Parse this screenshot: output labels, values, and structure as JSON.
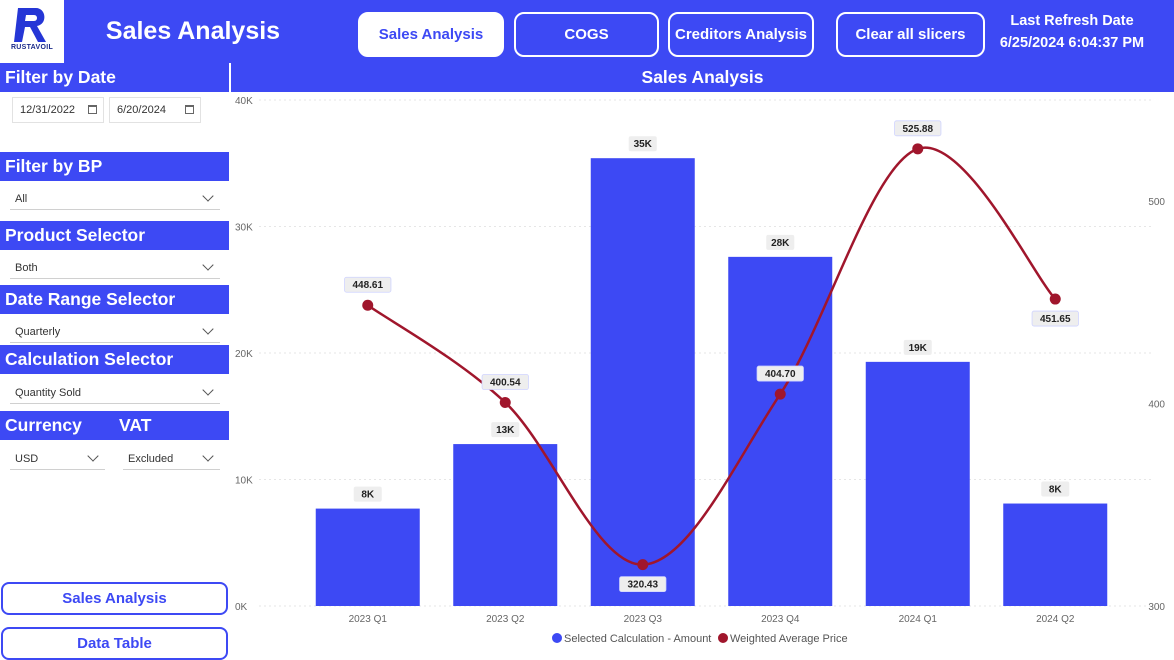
{
  "header": {
    "logo_text": "RUSTAVOIL",
    "title": "Sales Analysis",
    "nav": [
      {
        "label": "Sales Analysis",
        "active": true
      },
      {
        "label": "COGS",
        "active": false
      },
      {
        "label": "Creditors Analysis",
        "active": false
      },
      {
        "label": "Clear all slicers",
        "active": false
      }
    ],
    "refresh_label": "Last Refresh Date",
    "refresh_value": "6/25/2024 6:04:37 PM"
  },
  "sidebar": {
    "filter_date_title": "Filter by Date",
    "date_start": "12/31/2022",
    "date_end": "6/20/2024",
    "filter_bp_title": "Filter by BP",
    "filter_bp_value": "All",
    "product_title": "Product Selector",
    "product_value": "Both",
    "date_range_title": "Date Range Selector",
    "date_range_value": "Quarterly",
    "calc_title": "Calculation Selector",
    "calc_value": "Quantity Sold",
    "currency_title": "Currency",
    "currency_value": "USD",
    "vat_title": "VAT",
    "vat_value": "Excluded",
    "btn_sales": "Sales Analysis",
    "btn_table": "Data Table"
  },
  "chart_title": "Sales Analysis",
  "chart_data": {
    "type": "bar",
    "title": "Sales Analysis",
    "categories": [
      "2023 Q1",
      "2023 Q2",
      "2023 Q3",
      "2023 Q4",
      "2024 Q1",
      "2024 Q2"
    ],
    "series": [
      {
        "name": "Selected Calculation - Amount",
        "type": "bar",
        "axis": "left",
        "color": "#3d49f4",
        "values": [
          7700,
          12800,
          35400,
          27600,
          19300,
          8100
        ],
        "labels": [
          "8K",
          "13K",
          "35K",
          "28K",
          "19K",
          "8K"
        ]
      },
      {
        "name": "Weighted Average Price",
        "type": "line",
        "axis": "right",
        "color": "#a0162c",
        "values": [
          448.61,
          400.54,
          320.43,
          404.7,
          525.88,
          451.65
        ],
        "labels": [
          "448.61",
          "400.54",
          "320.43",
          "404.70",
          "525.88",
          "451.65"
        ]
      }
    ],
    "y_left": {
      "min": 0,
      "max": 40000,
      "ticks": [
        0,
        10000,
        20000,
        30000,
        40000
      ],
      "tick_labels": [
        "0K",
        "10K",
        "20K",
        "30K",
        "40K"
      ]
    },
    "y_right": {
      "min": 300,
      "max": 550,
      "ticks": [
        300,
        400,
        500
      ],
      "tick_labels": [
        "300",
        "400",
        "500"
      ]
    },
    "grid": true,
    "legend": "bottom-center"
  }
}
